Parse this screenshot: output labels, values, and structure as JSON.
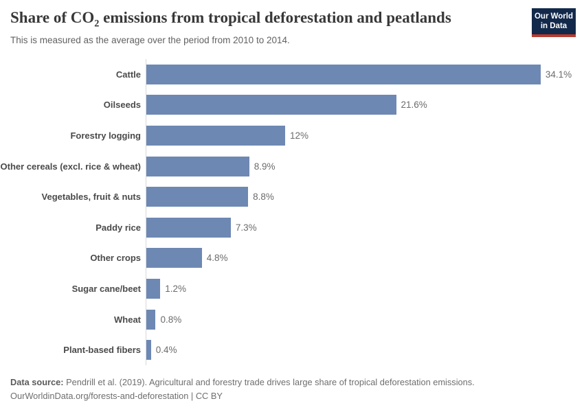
{
  "header": {
    "title_pre": "Share of CO",
    "title_sub_char": "2",
    "title_post": " emissions from tropical deforestation and peatlands",
    "subtitle": "This is measured as the average over the period from 2010 to 2014.",
    "logo": {
      "line1": "Our World",
      "line2": "in Data"
    }
  },
  "colors": {
    "bar": "#6D88B2",
    "axis_line": "#D9D9D9",
    "logo_bg": "#13294B",
    "logo_stripe": "#BC3A2C"
  },
  "chart_data": {
    "type": "bar",
    "orientation": "horizontal",
    "title": "Share of CO₂ emissions from tropical deforestation and peatlands",
    "subtitle": "This is measured as the average over the period from 2010 to 2014.",
    "categories": [
      "Cattle",
      "Oilseeds",
      "Forestry logging",
      "Other cereals (excl. rice & wheat)",
      "Vegetables, fruit & nuts",
      "Paddy rice",
      "Other crops",
      "Sugar cane/beet",
      "Wheat",
      "Plant-based fibers"
    ],
    "values": [
      34.1,
      21.6,
      12,
      8.9,
      8.8,
      7.3,
      4.8,
      1.2,
      0.8,
      0.4
    ],
    "value_labels": [
      "34.1%",
      "21.6%",
      "12%",
      "8.9%",
      "8.8%",
      "7.3%",
      "4.8%",
      "1.2%",
      "0.8%",
      "0.4%"
    ],
    "unit": "%",
    "xlim": [
      0,
      38
    ],
    "grid": false,
    "legend": "none",
    "bar_color": "#6D88B2"
  },
  "footer": {
    "source_label": "Data source:",
    "source_text": "Pendrill et al. (2019). Agricultural and forestry trade drives large share of tropical deforestation emissions.",
    "attribution": "OurWorldinData.org/forests-and-deforestation | CC BY"
  }
}
